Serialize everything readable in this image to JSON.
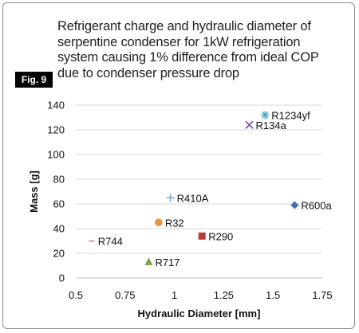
{
  "figure": {
    "badge": "Fig. 9",
    "title_lines": [
      "Refrigerant charge and hydraulic diameter of",
      "serpentine condenser for 1kW refrigeration",
      "system causing 1% difference from ideal COP",
      "due to condenser pressure drop"
    ]
  },
  "chart_data": {
    "type": "scatter",
    "title": "Refrigerant charge and hydraulic diameter of serpentine condenser for 1kW refrigeration system causing 1% difference from ideal COP due to condenser pressure drop",
    "xlabel": "Hydraulic Diameter [mm]",
    "ylabel": "Mass [g]",
    "xlim": [
      0.5,
      1.75
    ],
    "ylim": [
      0,
      140
    ],
    "xticks": [
      0.5,
      0.75,
      1,
      1.25,
      1.5,
      1.75
    ],
    "xtick_labels": [
      "0.5",
      "0.75",
      "1",
      "1.25",
      "1.5",
      "1.75"
    ],
    "yticks": [
      0,
      20,
      40,
      60,
      80,
      100,
      120,
      140
    ],
    "ytick_labels": [
      "0",
      "20",
      "40",
      "60",
      "80",
      "100",
      "120",
      "140"
    ],
    "grid": "horizontal",
    "legend": "none",
    "points": [
      {
        "label": "R1234yf",
        "x": 1.46,
        "y": 132,
        "marker": "asterisk",
        "color": "#4bacc6"
      },
      {
        "label": "R134a",
        "x": 1.38,
        "y": 124,
        "marker": "x",
        "color": "#7f5aa8"
      },
      {
        "label": "R410A",
        "x": 0.98,
        "y": 65,
        "marker": "plus",
        "color": "#7e9fd0"
      },
      {
        "label": "R600a",
        "x": 1.61,
        "y": 59,
        "marker": "diamond",
        "color": "#3f6fb5"
      },
      {
        "label": "R32",
        "x": 0.92,
        "y": 45,
        "marker": "circle",
        "color": "#e89540"
      },
      {
        "label": "R290",
        "x": 1.14,
        "y": 34,
        "marker": "square",
        "color": "#b83b37"
      },
      {
        "label": "R744",
        "x": 0.58,
        "y": 30,
        "marker": "dash",
        "color": "#e5989a"
      },
      {
        "label": "R717",
        "x": 0.87,
        "y": 13,
        "marker": "triangle",
        "color": "#7fa24a"
      }
    ]
  }
}
